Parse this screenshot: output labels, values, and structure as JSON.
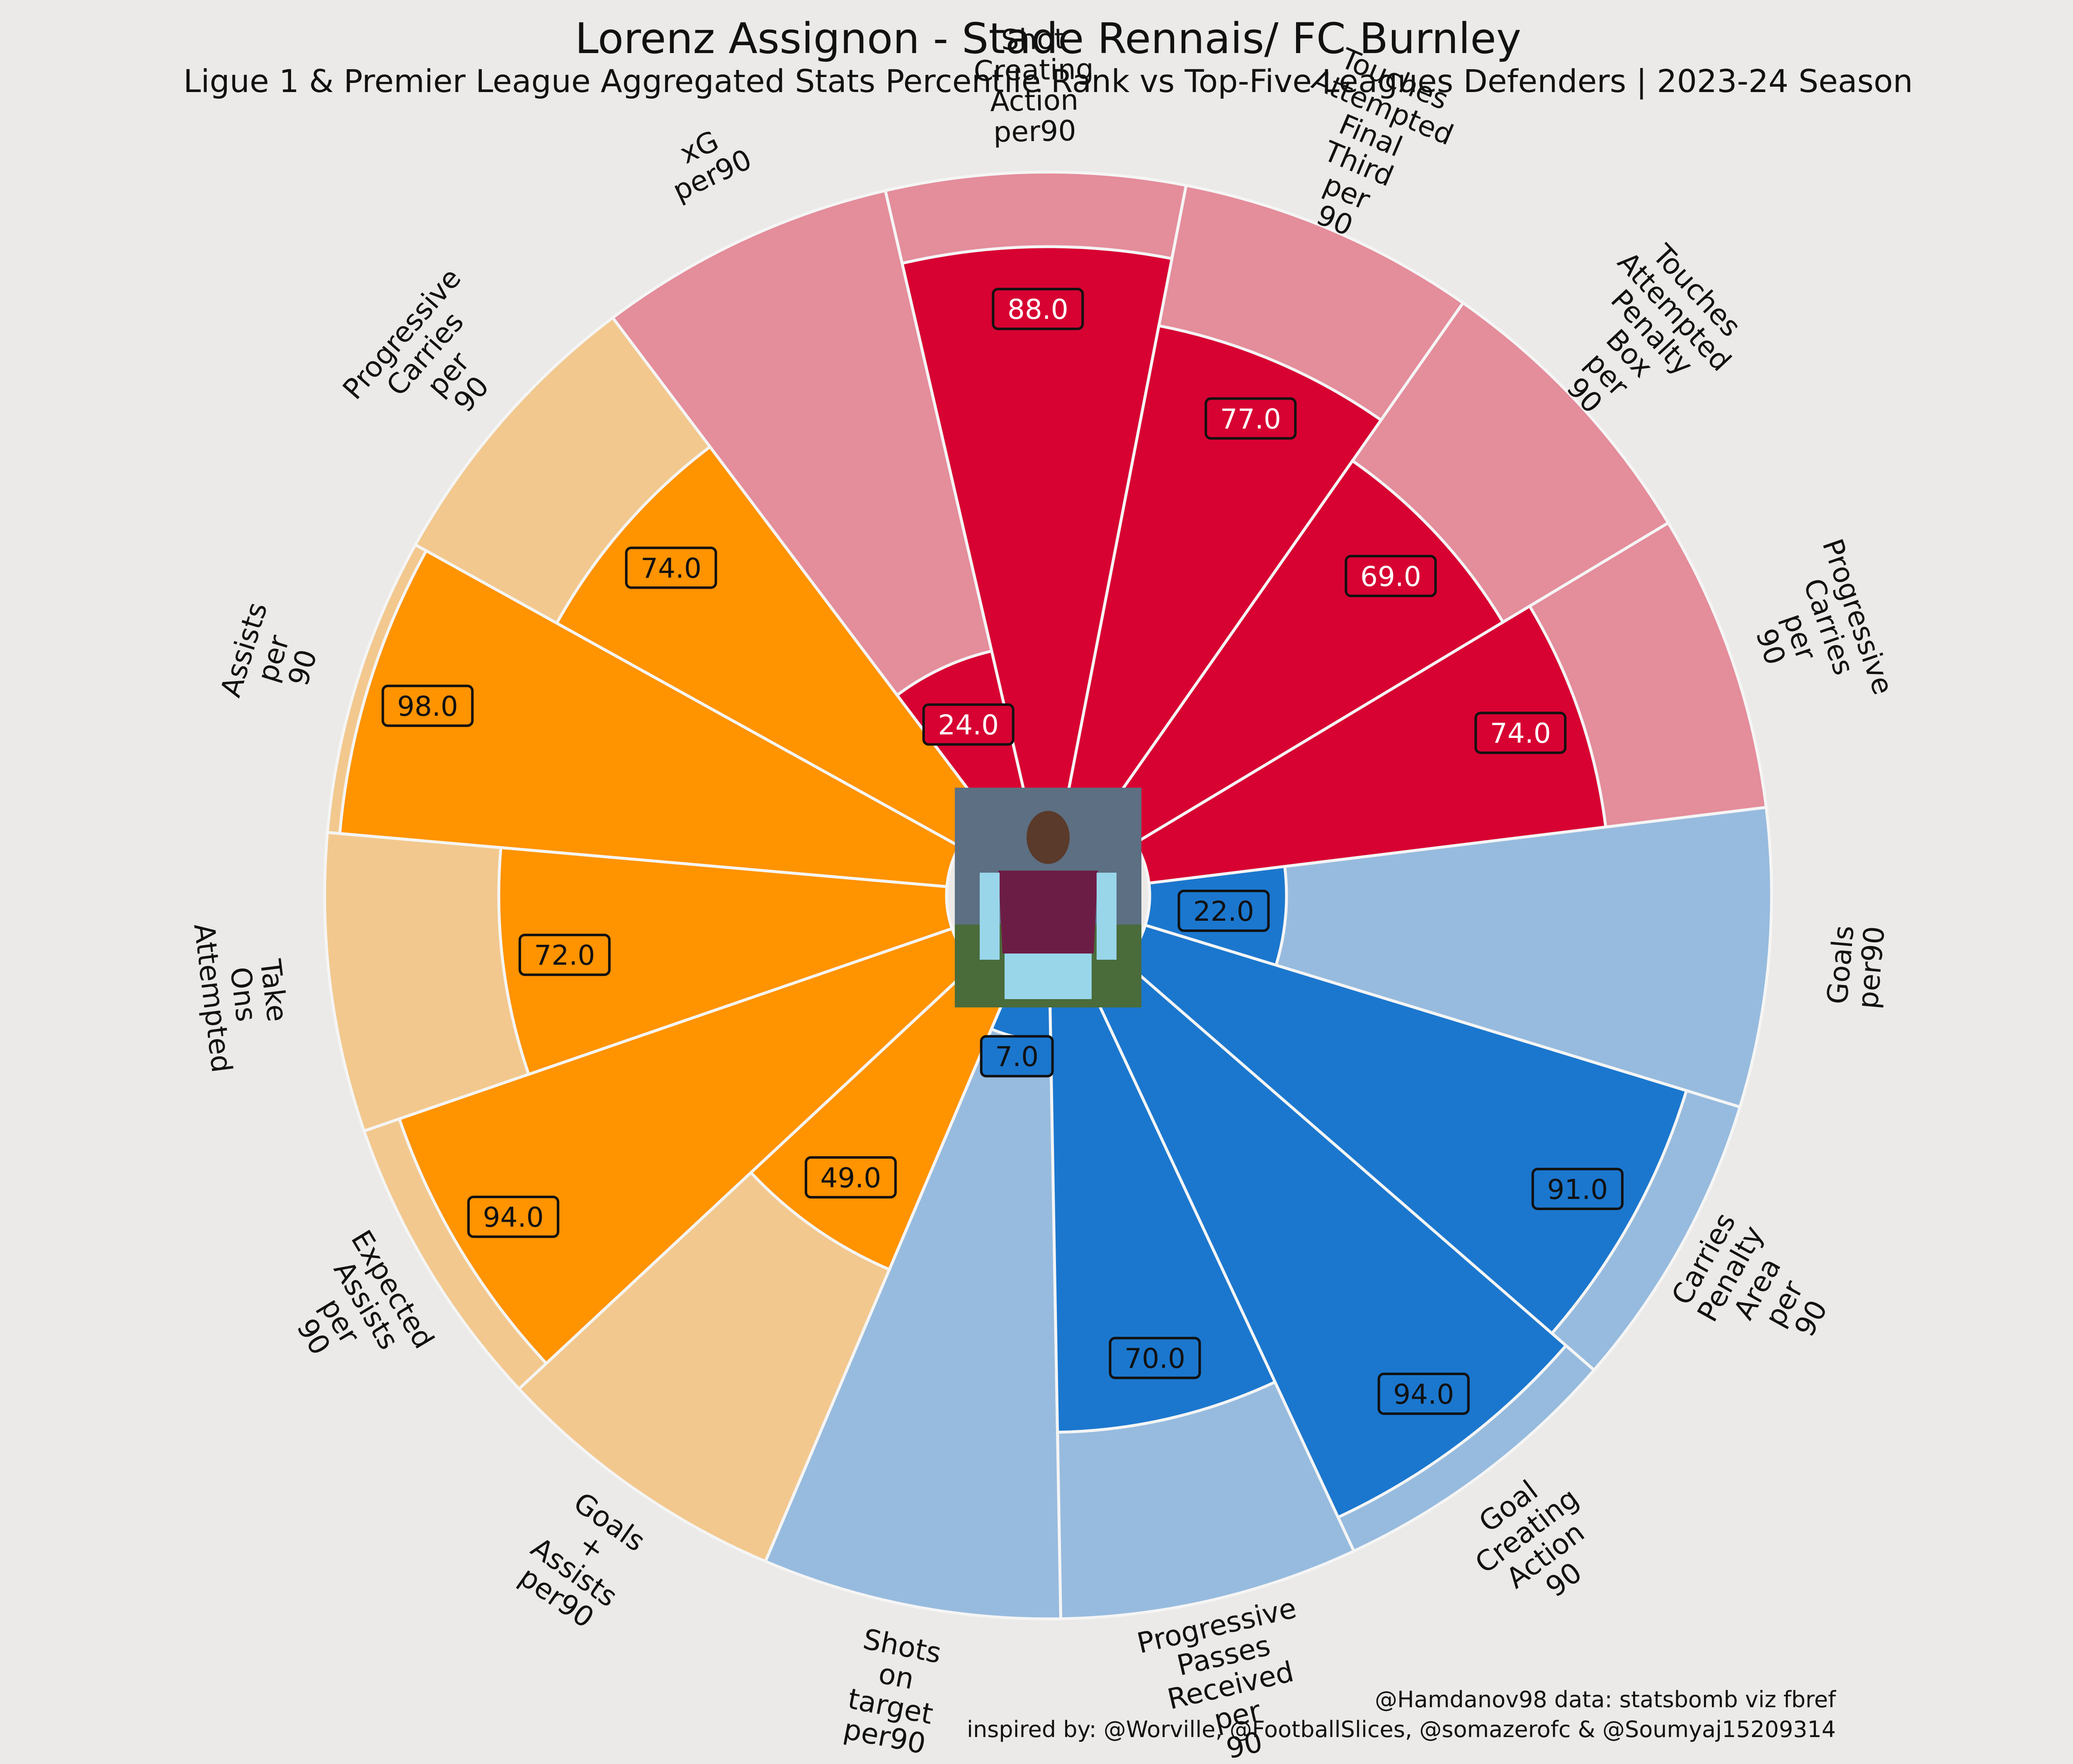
{
  "header": {
    "title": "Lorenz Assignon - Stade Rennais/ FC Burnley",
    "subtitle": "Ligue 1 & Premier League Aggregated Stats Percentile Rank vs Top-Five Leagues Defenders | 2023-24 Season"
  },
  "footer": {
    "line1": "@Hamdanov98 data: statsbomb viz fbref",
    "line2": "inspired by: @Worville, @FootballSlices, @somazerofc & @Soumyaj15209314"
  },
  "colors": {
    "background": "#EBEAE8",
    "attacking_light": "#E48D9B",
    "attacking_dark": "#D70232",
    "possession_light": "#97BBDE",
    "possession_dark": "#1B77CE",
    "passing_light": "#F2C88E",
    "passing_dark": "#FF9300",
    "edge": "#F5F5F5"
  },
  "center_image": {
    "name": "player-photo",
    "desc_colors": [
      "#6C1D45",
      "#99D6EA",
      "#4a6b3a"
    ]
  },
  "chart_data": {
    "type": "polar-bar",
    "max": 100,
    "categories": [
      "Goals per90",
      "Carries Penalty Area per 90",
      "Goal Creating Action 90",
      "Progressive Passes Received per 90",
      "Shots on target per90",
      "Goals + Assists per90",
      "Expected Assists per 90",
      "Take Ons Attempted",
      "Assists per 90",
      "Progressive Carries per 90",
      "xG per90",
      "Shot Creating Action per90",
      "Touches Attempted Final Third per 90",
      "Touches Attempted Penalty Box per 90",
      "Progressive Carries per 90"
    ],
    "label_lines": [
      [
        "Goals",
        "per90"
      ],
      [
        "Carries",
        "Penalty",
        "Area",
        "per",
        "90"
      ],
      [
        "Goal",
        "Creating",
        "Action",
        "90"
      ],
      [
        "Progressive",
        "Passes",
        "Received",
        "per",
        "90"
      ],
      [
        "Shots",
        "on",
        "target",
        "per90"
      ],
      [
        "Goals",
        "+",
        "Assists",
        "per90"
      ],
      [
        "Expected",
        "Assists",
        "per",
        "90"
      ],
      [
        "Take",
        "Ons",
        "Attempted"
      ],
      [
        "Assists",
        "per",
        "90"
      ],
      [
        "Progressive",
        "Carries",
        "per",
        "90"
      ],
      [
        "xG",
        "per90"
      ],
      [
        "Shot",
        "Creating",
        "Action",
        "per90"
      ],
      [
        "Touches",
        "Attempted",
        "Final",
        "Third",
        "per",
        "90"
      ],
      [
        "Touches",
        "Attempted",
        "Penalty",
        "Box",
        "per",
        "90"
      ],
      [
        "Progressive",
        "Carries",
        "per",
        "90"
      ]
    ],
    "values": [
      22,
      91,
      94,
      70,
      7,
      49,
      94,
      72,
      98,
      74,
      24,
      88,
      77,
      69,
      74
    ],
    "value_labels": [
      "22.0",
      "91.0",
      "94.0",
      "70.0",
      "7.0",
      "49.0",
      "94.0",
      "72.0",
      "98.0",
      "74.0",
      "24.0",
      "88.0",
      "77.0",
      "69.0",
      "74.0"
    ],
    "groups": [
      "possession",
      "possession",
      "possession",
      "possession",
      "possession",
      "passing",
      "passing",
      "passing",
      "passing",
      "passing",
      "attacking",
      "attacking",
      "attacking",
      "attacking",
      "attacking"
    ]
  }
}
